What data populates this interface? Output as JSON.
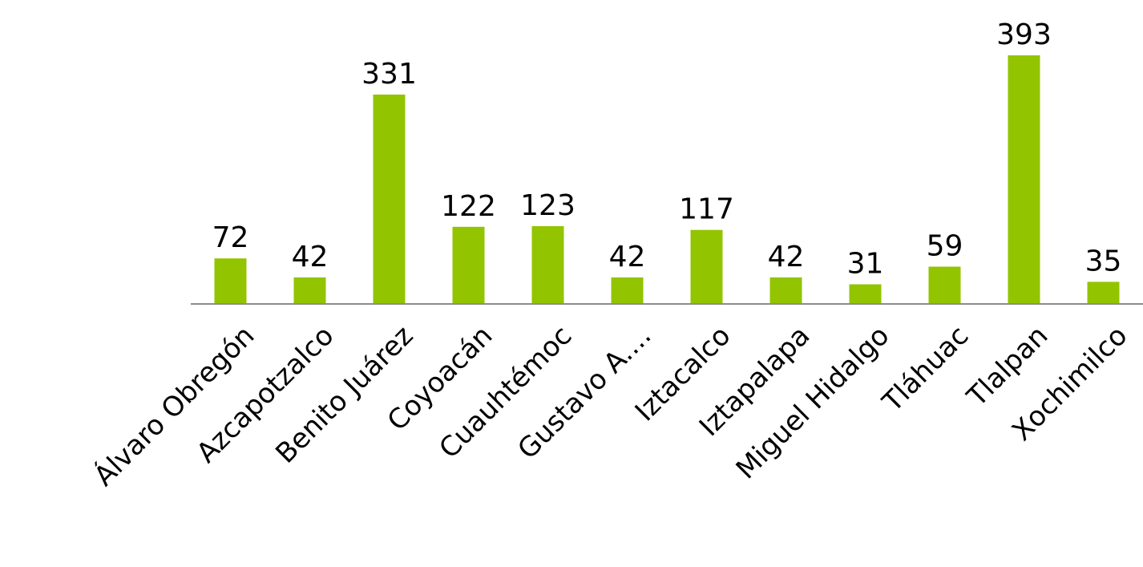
{
  "chart_data": {
    "type": "bar",
    "categories": [
      "Álvaro Obregón",
      "Azcapotzalco",
      "Benito Juárez",
      "Coyoacán",
      "Cuauhtémoc",
      "Gustavo A....",
      "Iztacalco",
      "Iztapalapa",
      "Miguel Hidalgo",
      "Tláhuac",
      "Tlalpan",
      "Xochimilco"
    ],
    "values": [
      72,
      42,
      331,
      122,
      123,
      42,
      117,
      42,
      31,
      59,
      393,
      35
    ],
    "data_labels": [
      "72",
      "42",
      "331",
      "122",
      "123",
      "42",
      "117",
      "42",
      "31",
      "59",
      "393",
      "35"
    ],
    "title": "",
    "xlabel": "",
    "ylabel": "",
    "ylim": [
      0,
      393
    ],
    "grid": false,
    "legend": "none",
    "bar_color": "#92c400",
    "axis_color": "#8c8c8c",
    "label_rotation_deg": -45
  }
}
